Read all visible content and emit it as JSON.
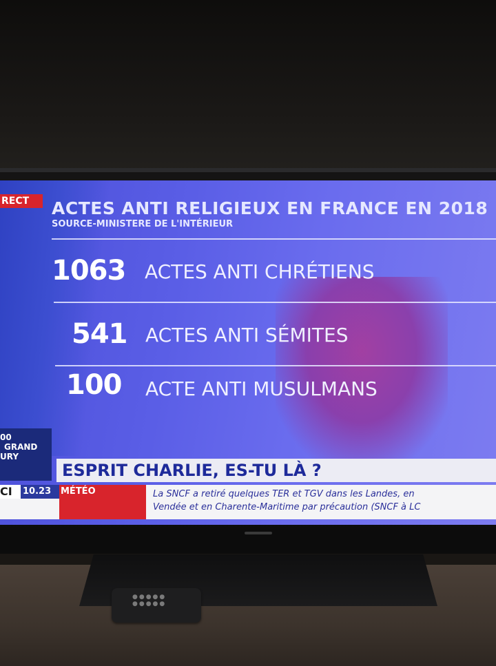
{
  "screen": {
    "live_tag": "RECT",
    "title": "ACTES ANTI RELIGIEUX EN FRANCE EN 2018",
    "subtitle": "SOURCE-MINISTERE DE L'INTÉRIEUR",
    "stats": [
      {
        "number": "1063",
        "label": "ACTES ANTI CHRÉTIENS"
      },
      {
        "number": "541",
        "label": "ACTES ANTI SÉMITES"
      },
      {
        "number": "100",
        "label": "ACTE ANTI MUSULMANS"
      }
    ],
    "side_box": [
      "00",
      "GRAND",
      "URY"
    ],
    "headline": "ESPRIT CHARLIE, ES-TU LÀ ?",
    "ticker": {
      "brand": "CI",
      "time": "10.23",
      "category": "MÉTÉO",
      "lines": [
        "La SNCF a retiré quelques TER et TGV dans les Landes, en",
        "Vendée et en Charente-Maritime par précaution (SNCF à LC"
      ]
    }
  },
  "colors": {
    "screen_blue": "#5a5ee6",
    "flag_red": "#a73a9a",
    "live_red": "#d8242c",
    "headline_text": "#1e2a9a"
  },
  "icons": [
    "remote-control-icon"
  ]
}
